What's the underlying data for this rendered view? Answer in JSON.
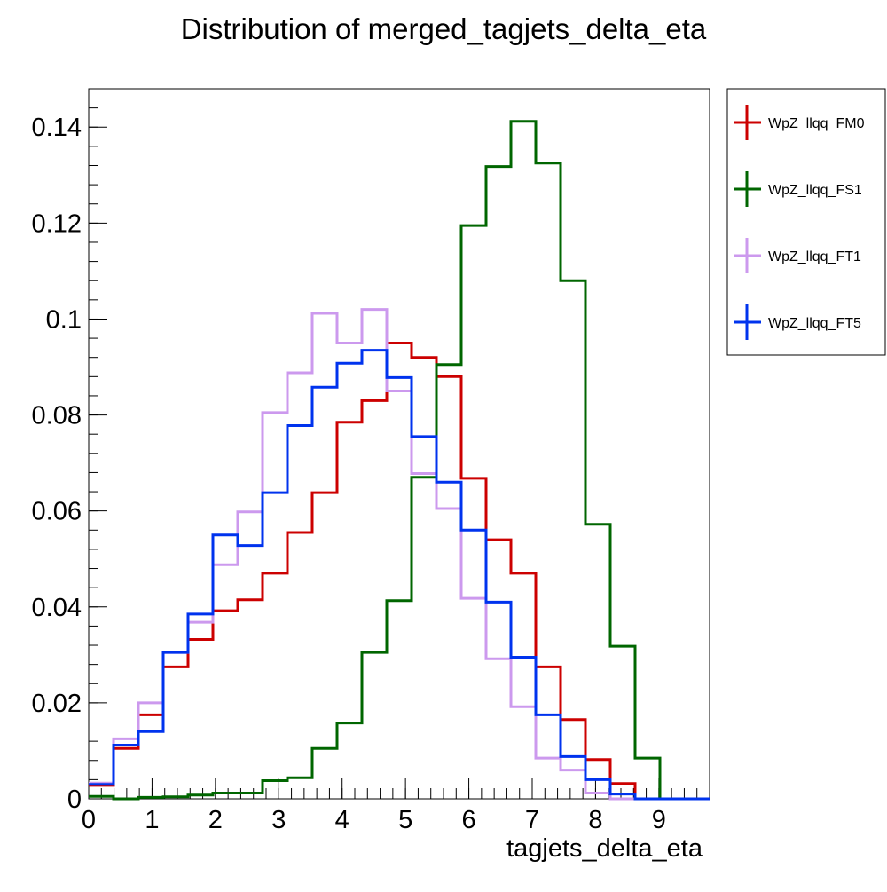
{
  "chart_data": {
    "type": "line",
    "title": "Distribution of merged_tagjets_delta_eta",
    "xlabel": "tagjets_delta_eta",
    "ylabel": "",
    "xlim": [
      0,
      9.8
    ],
    "ylim": [
      0,
      0.148
    ],
    "x_ticks": [
      0,
      1,
      2,
      3,
      4,
      5,
      6,
      7,
      8,
      9
    ],
    "x_tick_labels": [
      "0",
      "1",
      "2",
      "3",
      "4",
      "5",
      "6",
      "7",
      "8",
      "9"
    ],
    "y_ticks": [
      0,
      0.02,
      0.04,
      0.06,
      0.08,
      0.1,
      0.12,
      0.14
    ],
    "y_tick_labels": [
      "0",
      "0.02",
      "0.04",
      "0.06",
      "0.08",
      "0.1",
      "0.12",
      "0.14"
    ],
    "grid": false,
    "legend_position": "right-outside",
    "bin_edges": [
      0,
      0.392,
      0.784,
      1.176,
      1.568,
      1.96,
      2.352,
      2.744,
      3.136,
      3.528,
      3.92,
      4.312,
      4.704,
      5.096,
      5.488,
      5.88,
      6.272,
      6.664,
      7.056,
      7.448,
      7.84,
      8.232,
      8.624,
      9.016,
      9.408,
      9.8
    ],
    "series": [
      {
        "name": "WpZ_llqq_FM0",
        "color": "#cc0000",
        "values": [
          0.0028,
          0.0105,
          0.0175,
          0.0275,
          0.0332,
          0.0392,
          0.0415,
          0.047,
          0.0555,
          0.0638,
          0.0785,
          0.083,
          0.095,
          0.092,
          0.088,
          0.0668,
          0.054,
          0.047,
          0.0275,
          0.0165,
          0.0082,
          0.0032,
          0.0,
          0.0,
          0.0
        ]
      },
      {
        "name": "WpZ_llqq_FS1",
        "color": "#006600",
        "values": [
          0.0005,
          0.0,
          0.0003,
          0.0004,
          0.0008,
          0.0012,
          0.0012,
          0.0038,
          0.0044,
          0.0105,
          0.0158,
          0.0305,
          0.0413,
          0.067,
          0.0905,
          0.1195,
          0.1318,
          0.1412,
          0.1325,
          0.108,
          0.0572,
          0.0318,
          0.0085,
          0.0,
          0.0
        ]
      },
      {
        "name": "WpZ_llqq_FT1",
        "color": "#cc99ee",
        "values": [
          0.0033,
          0.0125,
          0.02,
          0.0305,
          0.0368,
          0.0488,
          0.0598,
          0.0805,
          0.0888,
          0.1012,
          0.095,
          0.102,
          0.085,
          0.0678,
          0.0605,
          0.0418,
          0.0292,
          0.0192,
          0.0085,
          0.006,
          0.0012,
          0.0,
          0.0,
          0.0,
          0.0
        ]
      },
      {
        "name": "WpZ_llqq_FT5",
        "color": "#0033ee",
        "values": [
          0.003,
          0.0112,
          0.014,
          0.0305,
          0.0385,
          0.055,
          0.0528,
          0.0638,
          0.0778,
          0.0858,
          0.0908,
          0.0935,
          0.0878,
          0.0755,
          0.066,
          0.056,
          0.041,
          0.0295,
          0.0175,
          0.0088,
          0.004,
          0.001,
          0.0,
          0.0,
          0.0
        ]
      }
    ]
  }
}
